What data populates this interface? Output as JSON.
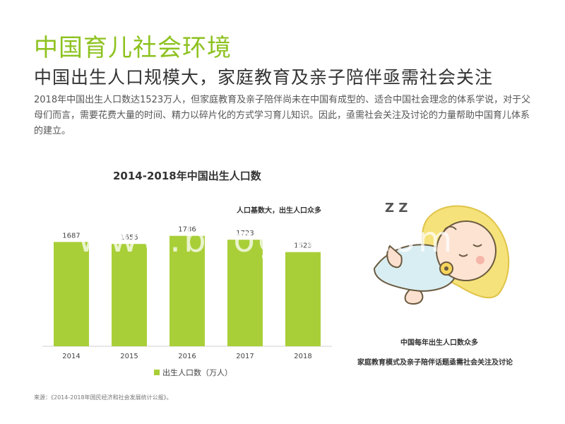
{
  "slide": {
    "title": "中国育儿社会环境",
    "subtitle": "中国出生人口规模大，家庭教育及亲子陪伴亟需社会关注",
    "body": "2018年中国出生人口数达1523万人，但家庭教育及亲子陪伴尚未在中国有成型的、适合中国社会理念的体系学说，对于父母们而言，需要花费大量的时间、精力以碎片化的方式学习育儿知识。因此，亟需社会关注及讨论的力量帮助中国育儿体系的建立。",
    "source": "来源：《2014-2018年国民经济和社会发展统计公报》。",
    "annotations": {
      "chart_note": "人口基数大，出生人口众多",
      "caption_1": "中国每年出生人口数众多",
      "caption_2": "家庭教育模式及亲子陪伴话题亟需社会关注及讨论"
    },
    "illustration_text": "Z Z",
    "watermark": "www.baogao8.com"
  },
  "colors": {
    "accent": "#8dc21f",
    "bar": "#a9cf38",
    "text": "#333333"
  },
  "chart_data": {
    "type": "bar",
    "title": "2014-2018年中国出生人口数",
    "categories": [
      "2014",
      "2015",
      "2016",
      "2017",
      "2018"
    ],
    "series": [
      {
        "name": "出生人口数（万人）",
        "values": [
          1687,
          1655,
          1786,
          1723,
          1523
        ]
      }
    ],
    "ylim": [
      0,
      2000
    ],
    "grid": false,
    "legend": "bottom",
    "data_labels": true
  }
}
